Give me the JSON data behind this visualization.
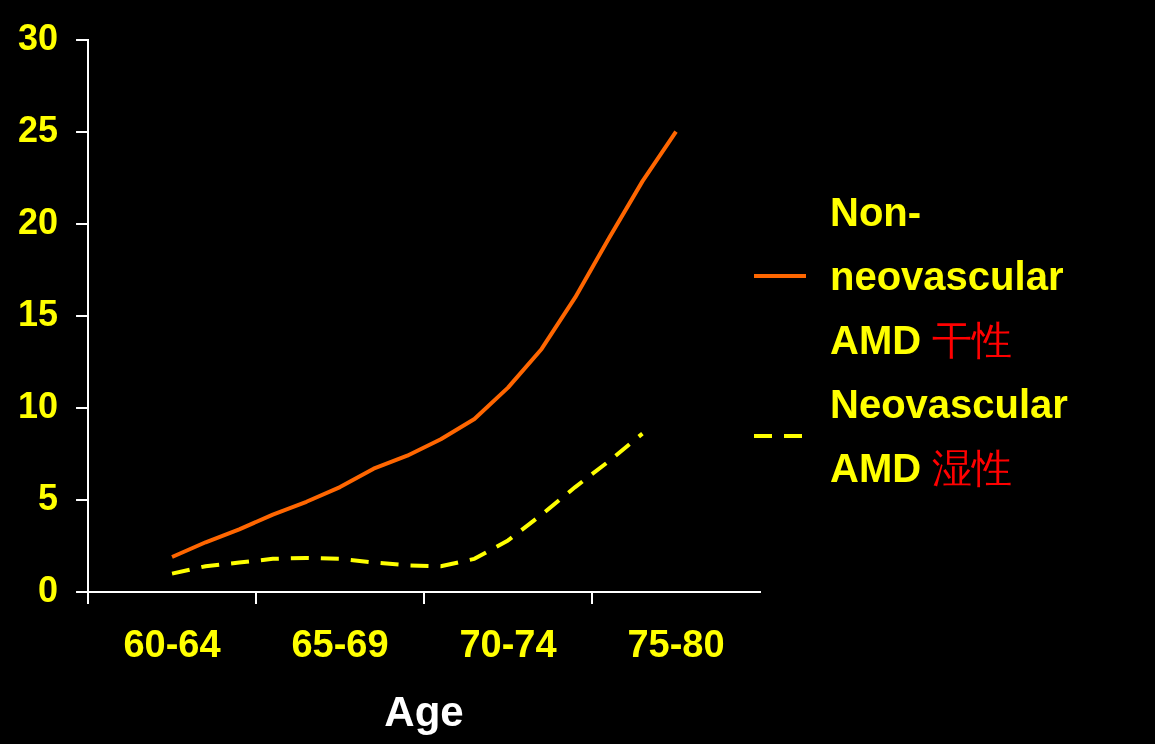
{
  "chart_data": {
    "type": "line",
    "xlabel": "Age",
    "categories": [
      null,
      null,
      "60-64",
      null,
      null,
      null,
      null,
      "65-69",
      null,
      null,
      null,
      null,
      "70-74",
      null,
      null,
      null,
      null,
      "75-80",
      null,
      null
    ],
    "ylim": [
      0,
      30
    ],
    "yticks": [
      0,
      5,
      10,
      15,
      20,
      25,
      30
    ],
    "grid": false,
    "legend": "right",
    "marker": "none",
    "series": [
      {
        "name": "Non-neovascular AMD 干性",
        "color": "#ff6600",
        "line_style": "solid",
        "values": [
          null,
          null,
          1.9,
          2.7,
          3.4,
          4.2,
          4.9,
          5.7,
          6.7,
          7.4,
          8.3,
          9.4,
          11.1,
          13.2,
          16.0,
          19.2,
          22.3,
          25.0,
          null,
          null
        ]
      },
      {
        "name": "Neovascular AMD 湿性",
        "color": "#ffff00",
        "line_style": "dashed",
        "values": [
          null,
          null,
          1.0,
          1.4,
          1.6,
          1.8,
          1.85,
          1.8,
          1.6,
          1.45,
          1.4,
          1.8,
          2.8,
          4.2,
          5.7,
          7.1,
          8.6,
          null,
          null,
          null
        ]
      }
    ]
  }
}
